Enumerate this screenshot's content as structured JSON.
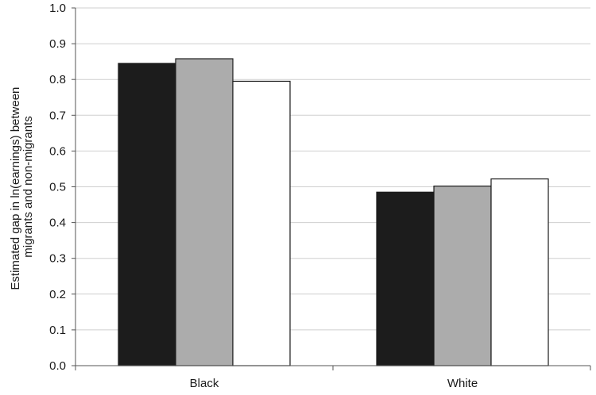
{
  "chart_data": {
    "type": "bar",
    "title": "",
    "xlabel": "",
    "ylabel": "Estimated gap in ln(earnings) between migrants and non-migrants",
    "ylabel_lines": [
      "Estimated gap in ln(earnings) between",
      "migrants and non-migrants"
    ],
    "categories": [
      "Black",
      "White"
    ],
    "series": [
      {
        "values": [
          0.845,
          0.485
        ],
        "color": "#1c1c1c"
      },
      {
        "values": [
          0.858,
          0.502
        ],
        "color": "#acacac"
      },
      {
        "values": [
          0.795,
          0.522
        ],
        "color": "#ffffff"
      }
    ],
    "ylim": [
      0,
      1.0
    ],
    "yticks": [
      "0.0",
      "0.1",
      "0.2",
      "0.3",
      "0.4",
      "0.5",
      "0.6",
      "0.7",
      "0.8",
      "0.9",
      "1.0"
    ],
    "grid": true,
    "legend": "none",
    "gridline_color": "#cfcfcf",
    "axis_color": "#555555"
  }
}
